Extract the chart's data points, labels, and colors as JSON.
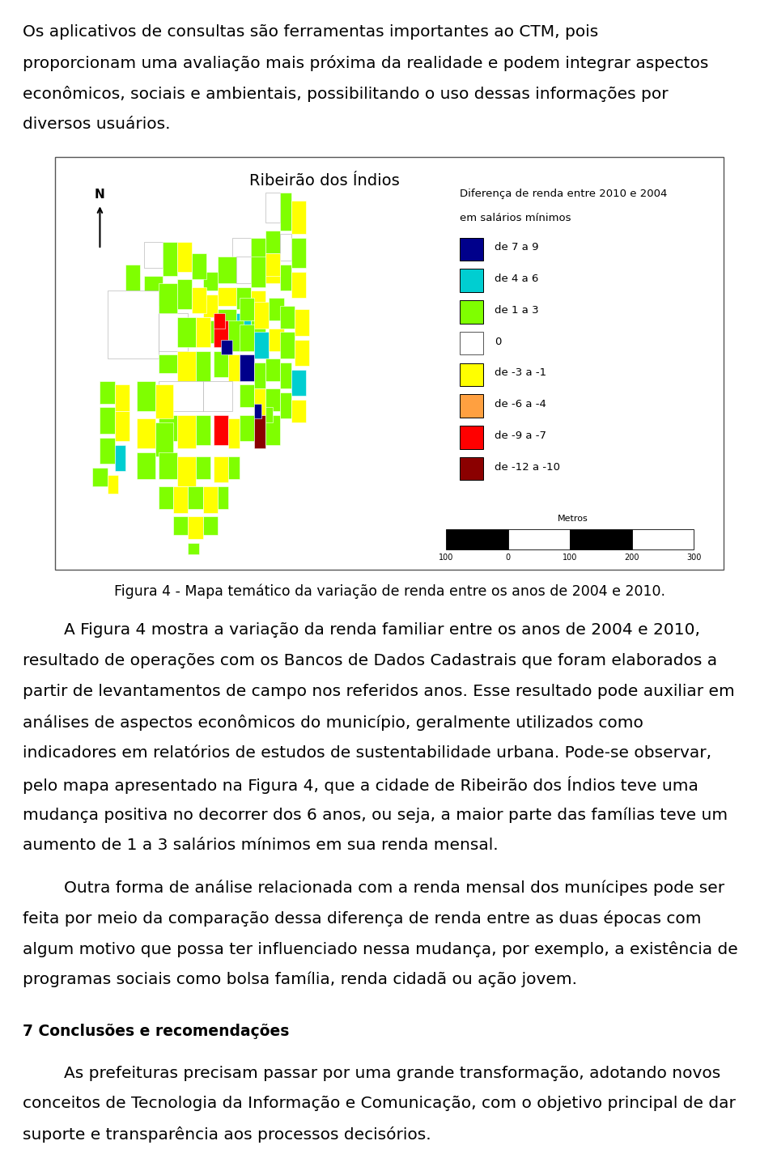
{
  "page_bg": "#ffffff",
  "text_color": "#000000",
  "font_size_body": 14.5,
  "font_size_caption": 12.5,
  "font_size_heading": 13.5,
  "font_size_map_title": 14.0,
  "font_size_legend": 9.5,
  "map_title": "Ribeirão dos Índios",
  "legend_title_line1": "Diferença de renda entre 2010 e 2004",
  "legend_title_line2": "em salários mínimos",
  "legend_items": [
    {
      "label": "de 7 a 9",
      "color": "#00008B"
    },
    {
      "label": "de 4 a 6",
      "color": "#00CED1"
    },
    {
      "label": "de 1 a 3",
      "color": "#7FFF00"
    },
    {
      "label": "0",
      "color": "#FFFFFF"
    },
    {
      "label": "de -3 a -1",
      "color": "#FFFF00"
    },
    {
      "label": "de -6 a -4",
      "color": "#FFA040"
    },
    {
      "label": "de -9 a -7",
      "color": "#FF0000"
    },
    {
      "label": "de -12 a -10",
      "color": "#8B0000"
    }
  ],
  "caption": "Figura 4 - Mapa temático da variação de renda entre os anos de 2004 e 2010.",
  "lines_p1": [
    "Os aplicativos de consultas são ferramentas importantes ao CTM, pois",
    "proporcionam uma avaliação mais próxima da realidade e podem integrar aspectos",
    "econômicos, sociais e ambientais, possibilitando o uso dessas informações por",
    "diversos usuários."
  ],
  "lines_p2": [
    "        A Figura 4 mostra a variação da renda familiar entre os anos de 2004 e 2010,",
    "resultado de operações com os Bancos de Dados Cadastrais que foram elaborados a",
    "partir de levantamentos de campo nos referidos anos. Esse resultado pode auxiliar em",
    "análises de aspectos econômicos do município, geralmente utilizados como",
    "indicadores em relatórios de estudos de sustentabilidade urbana. Pode-se observar,",
    "pelo mapa apresentado na Figura 4, que a cidade de Ribeirão dos Índios teve uma",
    "mudança positiva no decorrer dos 6 anos, ou seja, a maior parte das famílias teve um",
    "aumento de 1 a 3 salários mínimos em sua renda mensal."
  ],
  "lines_p3": [
    "        Outra forma de análise relacionada com a renda mensal dos munícipes pode ser",
    "feita por meio da comparação dessa diferença de renda entre as duas épocas com",
    "algum motivo que possa ter influenciado nessa mudança, por exemplo, a existência de",
    "programas sociais como bolsa família, renda cidadã ou ação jovem."
  ],
  "heading": "7 Conclusões e recomendações",
  "lines_p4": [
    "        As prefeituras precisam passar por uma grande transformação, adotando novos",
    "conceitos de Tecnologia da Informação e Comunicação, com o objetivo principal de dar",
    "suporte e transparência aos processos decisórios."
  ]
}
